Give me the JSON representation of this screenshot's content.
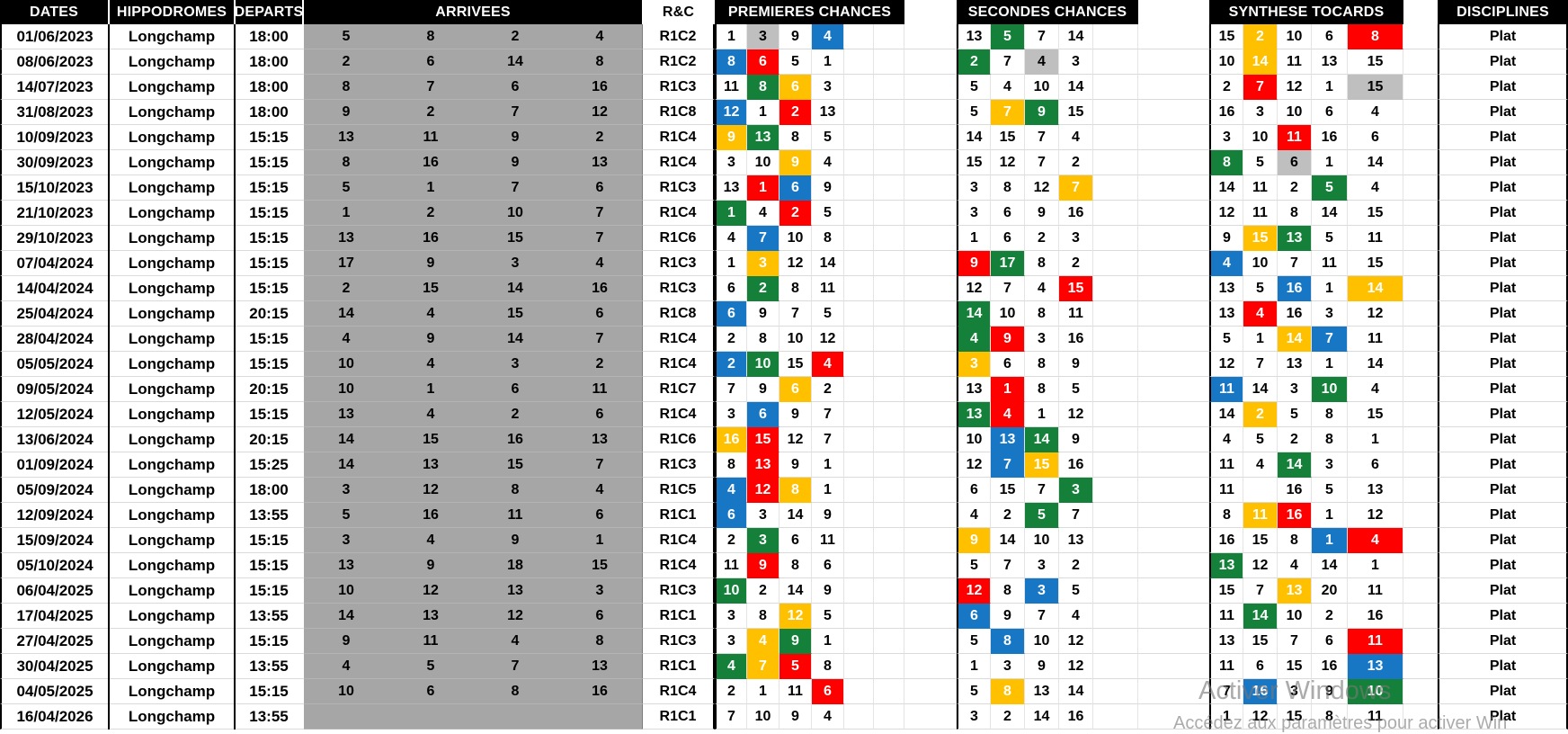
{
  "header": {
    "dates": "DATES",
    "hippodromes": "HIPPODROMES",
    "departs": "DEPARTS",
    "arrivees": "ARRIVEES",
    "rc": "R&C",
    "premieres": "PREMIERES CHANCES",
    "secondes": "SECONDES CHANCES",
    "synthese": "SYNTHESE TOCARDS",
    "disciplines": "DISCIPLINES"
  },
  "cell_colors": {
    "B": "#1877C5",
    "R": "#FE0000",
    "G": "#15803A",
    "Y": "#FFC000",
    "N": "#BFBFBF"
  },
  "theme": {
    "header_bg": "#000000",
    "header_text": "#FFFFFF",
    "arrivees_bg": "#A6A6A6"
  },
  "watermark": {
    "line1": "Activer Windows",
    "line2": "Accédez aux paramètres pour activer Win"
  },
  "rows": [
    {
      "date": "01/06/2023",
      "hippodrome": "Longchamp",
      "depart": "18:00",
      "arrivees": [
        "5",
        "8",
        "2",
        "4"
      ],
      "rc": "R1C2",
      "premieres": [
        "1",
        "3|N",
        "9",
        "4|B"
      ],
      "secondes": [
        "13",
        "5|G",
        "7",
        "14"
      ],
      "synthese": [
        "15",
        "2|Y",
        "10",
        "6",
        "8|R"
      ],
      "discipline": "Plat"
    },
    {
      "date": "08/06/2023",
      "hippodrome": "Longchamp",
      "depart": "18:00",
      "arrivees": [
        "2",
        "6",
        "14",
        "8"
      ],
      "rc": "R1C2",
      "premieres": [
        "8|B",
        "6|R",
        "5",
        "1"
      ],
      "secondes": [
        "2|G",
        "7",
        "4|N",
        "3"
      ],
      "synthese": [
        "10",
        "14|Y",
        "11",
        "13",
        "15"
      ],
      "discipline": "Plat"
    },
    {
      "date": "14/07/2023",
      "hippodrome": "Longchamp",
      "depart": "18:00",
      "arrivees": [
        "8",
        "7",
        "6",
        "16"
      ],
      "rc": "R1C3",
      "premieres": [
        "11",
        "8|G",
        "6|Y",
        "3"
      ],
      "secondes": [
        "5",
        "4",
        "10",
        "14"
      ],
      "synthese": [
        "2",
        "7|R",
        "12",
        "1",
        "15|N"
      ],
      "discipline": "Plat"
    },
    {
      "date": "31/08/2023",
      "hippodrome": "Longchamp",
      "depart": "18:00",
      "arrivees": [
        "9",
        "2",
        "7",
        "12"
      ],
      "rc": "R1C8",
      "premieres": [
        "12|B",
        "1",
        "2|R",
        "13"
      ],
      "secondes": [
        "5",
        "7|Y",
        "9|G",
        "15"
      ],
      "synthese": [
        "16",
        "3",
        "10",
        "6",
        "4"
      ],
      "discipline": "Plat"
    },
    {
      "date": "10/09/2023",
      "hippodrome": "Longchamp",
      "depart": "15:15",
      "arrivees": [
        "13",
        "11",
        "9",
        "2"
      ],
      "rc": "R1C4",
      "premieres": [
        "9|Y",
        "13|G",
        "8",
        "5"
      ],
      "secondes": [
        "14",
        "15",
        "7",
        "4"
      ],
      "synthese": [
        "3",
        "10",
        "11|R",
        "16",
        "6"
      ],
      "discipline": "Plat"
    },
    {
      "date": "30/09/2023",
      "hippodrome": "Longchamp",
      "depart": "15:15",
      "arrivees": [
        "8",
        "16",
        "9",
        "13"
      ],
      "rc": "R1C4",
      "premieres": [
        "3",
        "10",
        "9|Y",
        "4"
      ],
      "secondes": [
        "15",
        "12",
        "7",
        "2"
      ],
      "synthese": [
        "8|G",
        "5",
        "6|N",
        "1",
        "14"
      ],
      "discipline": "Plat"
    },
    {
      "date": "15/10/2023",
      "hippodrome": "Longchamp",
      "depart": "15:15",
      "arrivees": [
        "5",
        "1",
        "7",
        "6"
      ],
      "rc": "R1C3",
      "premieres": [
        "13",
        "1|R",
        "6|B",
        "9"
      ],
      "secondes": [
        "3",
        "8",
        "12",
        "7|Y"
      ],
      "synthese": [
        "14",
        "11",
        "2",
        "5|G",
        "4"
      ],
      "discipline": "Plat"
    },
    {
      "date": "21/10/2023",
      "hippodrome": "Longchamp",
      "depart": "15:15",
      "arrivees": [
        "1",
        "2",
        "10",
        "7"
      ],
      "rc": "R1C4",
      "premieres": [
        "1|G",
        "4",
        "2|R",
        "5"
      ],
      "secondes": [
        "3",
        "6",
        "9",
        "16"
      ],
      "synthese": [
        "12",
        "11",
        "8",
        "14",
        "15"
      ],
      "discipline": "Plat"
    },
    {
      "date": "29/10/2023",
      "hippodrome": "Longchamp",
      "depart": "15:15",
      "arrivees": [
        "13",
        "16",
        "15",
        "7"
      ],
      "rc": "R1C6",
      "premieres": [
        "4",
        "7|B",
        "10",
        "8"
      ],
      "secondes": [
        "1",
        "6",
        "2",
        "3"
      ],
      "synthese": [
        "9",
        "15|Y",
        "13|G",
        "5",
        "11"
      ],
      "discipline": "Plat"
    },
    {
      "date": "07/04/2024",
      "hippodrome": "Longchamp",
      "depart": "15:15",
      "arrivees": [
        "17",
        "9",
        "3",
        "4"
      ],
      "rc": "R1C3",
      "premieres": [
        "1",
        "3|Y",
        "12",
        "14"
      ],
      "secondes": [
        "9|R",
        "17|G",
        "8",
        "2"
      ],
      "synthese": [
        "4|B",
        "10",
        "7",
        "11",
        "15"
      ],
      "discipline": "Plat"
    },
    {
      "date": "14/04/2024",
      "hippodrome": "Longchamp",
      "depart": "15:15",
      "arrivees": [
        "2",
        "15",
        "14",
        "16"
      ],
      "rc": "R1C3",
      "premieres": [
        "6",
        "2|G",
        "8",
        "11"
      ],
      "secondes": [
        "12",
        "7",
        "4",
        "15|R"
      ],
      "synthese": [
        "13",
        "5",
        "16|B",
        "1",
        "14|Y"
      ],
      "discipline": "Plat"
    },
    {
      "date": "25/04/2024",
      "hippodrome": "Longchamp",
      "depart": "20:15",
      "arrivees": [
        "14",
        "4",
        "15",
        "6"
      ],
      "rc": "R1C8",
      "premieres": [
        "6|B",
        "9",
        "7",
        "5"
      ],
      "secondes": [
        "14|G",
        "10",
        "8",
        "11"
      ],
      "synthese": [
        "13",
        "4|R",
        "16",
        "3",
        "12"
      ],
      "discipline": "Plat"
    },
    {
      "date": "28/04/2024",
      "hippodrome": "Longchamp",
      "depart": "15:15",
      "arrivees": [
        "4",
        "9",
        "14",
        "7"
      ],
      "rc": "R1C4",
      "premieres": [
        "2",
        "8",
        "10",
        "12"
      ],
      "secondes": [
        "4|G",
        "9|R",
        "3",
        "16"
      ],
      "synthese": [
        "5",
        "1",
        "14|Y",
        "7|B",
        "11"
      ],
      "discipline": "Plat"
    },
    {
      "date": "05/05/2024",
      "hippodrome": "Longchamp",
      "depart": "15:15",
      "arrivees": [
        "10",
        "4",
        "3",
        "2"
      ],
      "rc": "R1C4",
      "premieres": [
        "2|B",
        "10|G",
        "15",
        "4|R"
      ],
      "secondes": [
        "3|Y",
        "6",
        "8",
        "9"
      ],
      "synthese": [
        "12",
        "7",
        "13",
        "1",
        "14"
      ],
      "discipline": "Plat"
    },
    {
      "date": "09/05/2024",
      "hippodrome": "Longchamp",
      "depart": "20:15",
      "arrivees": [
        "10",
        "1",
        "6",
        "11"
      ],
      "rc": "R1C7",
      "premieres": [
        "7",
        "9",
        "6|Y",
        "2"
      ],
      "secondes": [
        "13",
        "1|R",
        "8",
        "5"
      ],
      "synthese": [
        "11|B",
        "14",
        "3",
        "10|G",
        "4"
      ],
      "discipline": "Plat"
    },
    {
      "date": "12/05/2024",
      "hippodrome": "Longchamp",
      "depart": "15:15",
      "arrivees": [
        "13",
        "4",
        "2",
        "6"
      ],
      "rc": "R1C4",
      "premieres": [
        "3",
        "6|B",
        "9",
        "7"
      ],
      "secondes": [
        "13|G",
        "4|R",
        "1",
        "12"
      ],
      "synthese": [
        "14",
        "2|Y",
        "5",
        "8",
        "15"
      ],
      "discipline": "Plat"
    },
    {
      "date": "13/06/2024",
      "hippodrome": "Longchamp",
      "depart": "20:15",
      "arrivees": [
        "14",
        "15",
        "16",
        "13"
      ],
      "rc": "R1C6",
      "premieres": [
        "16|Y",
        "15|R",
        "12",
        "7"
      ],
      "secondes": [
        "10",
        "13|B",
        "14|G",
        "9"
      ],
      "synthese": [
        "4",
        "5",
        "2",
        "8",
        "1"
      ],
      "discipline": "Plat"
    },
    {
      "date": "01/09/2024",
      "hippodrome": "Longchamp",
      "depart": "15:25",
      "arrivees": [
        "14",
        "13",
        "15",
        "7"
      ],
      "rc": "R1C3",
      "premieres": [
        "8",
        "13|R",
        "9",
        "1"
      ],
      "secondes": [
        "12",
        "7|B",
        "15|Y",
        "16"
      ],
      "synthese": [
        "11",
        "4",
        "14|G",
        "3",
        "6"
      ],
      "discipline": "Plat"
    },
    {
      "date": "05/09/2024",
      "hippodrome": "Longchamp",
      "depart": "18:00",
      "arrivees": [
        "3",
        "12",
        "8",
        "4"
      ],
      "rc": "R1C5",
      "premieres": [
        "4|B",
        "12|R",
        "8|Y",
        "1"
      ],
      "secondes": [
        "6",
        "15",
        "7",
        "3|G"
      ],
      "synthese": [
        "11",
        "",
        "16",
        "5",
        "13"
      ],
      "discipline": "Plat"
    },
    {
      "date": "12/09/2024",
      "hippodrome": "Longchamp",
      "depart": "13:55",
      "arrivees": [
        "5",
        "16",
        "11",
        "6"
      ],
      "rc": "R1C1",
      "premieres": [
        "6|B",
        "3",
        "14",
        "9"
      ],
      "secondes": [
        "4",
        "2",
        "5|G",
        "7"
      ],
      "synthese": [
        "8",
        "11|Y",
        "16|R",
        "1",
        "12"
      ],
      "discipline": "Plat"
    },
    {
      "date": "15/09/2024",
      "hippodrome": "Longchamp",
      "depart": "15:15",
      "arrivees": [
        "3",
        "4",
        "9",
        "1"
      ],
      "rc": "R1C4",
      "premieres": [
        "2",
        "3|G",
        "6",
        "11"
      ],
      "secondes": [
        "9|Y",
        "14",
        "10",
        "13"
      ],
      "synthese": [
        "16",
        "15",
        "8",
        "1|B",
        "4|R"
      ],
      "discipline": "Plat"
    },
    {
      "date": "05/10/2024",
      "hippodrome": "Longchamp",
      "depart": "15:15",
      "arrivees": [
        "13",
        "9",
        "18",
        "15"
      ],
      "rc": "R1C4",
      "premieres": [
        "11",
        "9|R",
        "8",
        "6"
      ],
      "secondes": [
        "5",
        "7",
        "3",
        "2"
      ],
      "synthese": [
        "13|G",
        "12",
        "4",
        "14",
        "1"
      ],
      "discipline": "Plat"
    },
    {
      "date": "06/04/2025",
      "hippodrome": "Longchamp",
      "depart": "15:15",
      "arrivees": [
        "10",
        "12",
        "13",
        "3"
      ],
      "rc": "R1C3",
      "premieres": [
        "10|G",
        "2",
        "14",
        "9"
      ],
      "secondes": [
        "12|R",
        "8",
        "3|B",
        "5"
      ],
      "synthese": [
        "15",
        "7",
        "13|Y",
        "20",
        "11"
      ],
      "discipline": "Plat"
    },
    {
      "date": "17/04/2025",
      "hippodrome": "Longchamp",
      "depart": "13:55",
      "arrivees": [
        "14",
        "13",
        "12",
        "6"
      ],
      "rc": "R1C1",
      "premieres": [
        "3",
        "8",
        "12|Y",
        "5"
      ],
      "secondes": [
        "6|B",
        "9",
        "7",
        "4"
      ],
      "synthese": [
        "11",
        "14|G",
        "10",
        "2",
        "16"
      ],
      "discipline": "Plat"
    },
    {
      "date": "27/04/2025",
      "hippodrome": "Longchamp",
      "depart": "15:15",
      "arrivees": [
        "9",
        "11",
        "4",
        "8"
      ],
      "rc": "R1C3",
      "premieres": [
        "3",
        "4|Y",
        "9|G",
        "1"
      ],
      "secondes": [
        "5",
        "8|B",
        "10",
        "12"
      ],
      "synthese": [
        "13",
        "15",
        "7",
        "6",
        "11|R"
      ],
      "discipline": "Plat"
    },
    {
      "date": "30/04/2025",
      "hippodrome": "Longchamp",
      "depart": "13:55",
      "arrivees": [
        "4",
        "5",
        "7",
        "13"
      ],
      "rc": "R1C1",
      "premieres": [
        "4|G",
        "7|Y",
        "5|R",
        "8"
      ],
      "secondes": [
        "1",
        "3",
        "9",
        "12"
      ],
      "synthese": [
        "11",
        "6",
        "15",
        "16",
        "13|B"
      ],
      "discipline": "Plat"
    },
    {
      "date": "04/05/2025",
      "hippodrome": "Longchamp",
      "depart": "15:15",
      "arrivees": [
        "10",
        "6",
        "8",
        "16"
      ],
      "rc": "R1C4",
      "premieres": [
        "2",
        "1",
        "11",
        "6|R"
      ],
      "secondes": [
        "5",
        "8|Y",
        "13",
        "14"
      ],
      "synthese": [
        "7",
        "16|B",
        "3",
        "9",
        "10|G"
      ],
      "discipline": "Plat"
    },
    {
      "date": "16/04/2026",
      "hippodrome": "Longchamp",
      "depart": "13:55",
      "arrivees": [
        "",
        "",
        "",
        ""
      ],
      "rc": "R1C1",
      "premieres": [
        "7",
        "10",
        "9",
        "4"
      ],
      "secondes": [
        "3",
        "2",
        "14",
        "16"
      ],
      "synthese": [
        "1",
        "12",
        "15",
        "8",
        "11"
      ],
      "discipline": "Plat"
    }
  ]
}
